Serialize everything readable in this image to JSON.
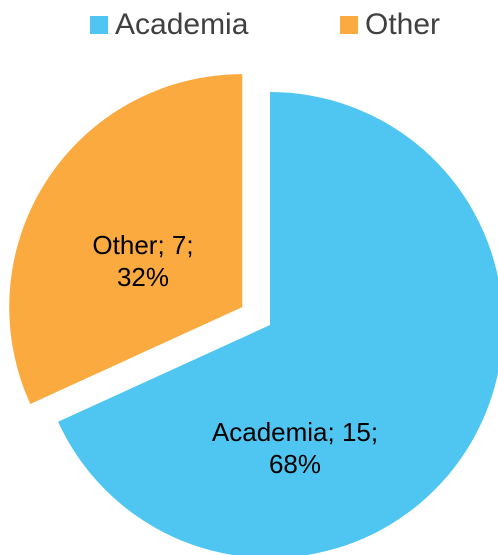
{
  "chart_data": {
    "type": "pie",
    "categories": [
      "Academia",
      "Other"
    ],
    "values": [
      15,
      7
    ],
    "value_labels": [
      [
        "Academia; 15;",
        "68%"
      ],
      [
        "Other; 7;",
        "32%"
      ]
    ],
    "colors": [
      "#4fc6f2",
      "#fbaa40"
    ],
    "legend": "top"
  }
}
